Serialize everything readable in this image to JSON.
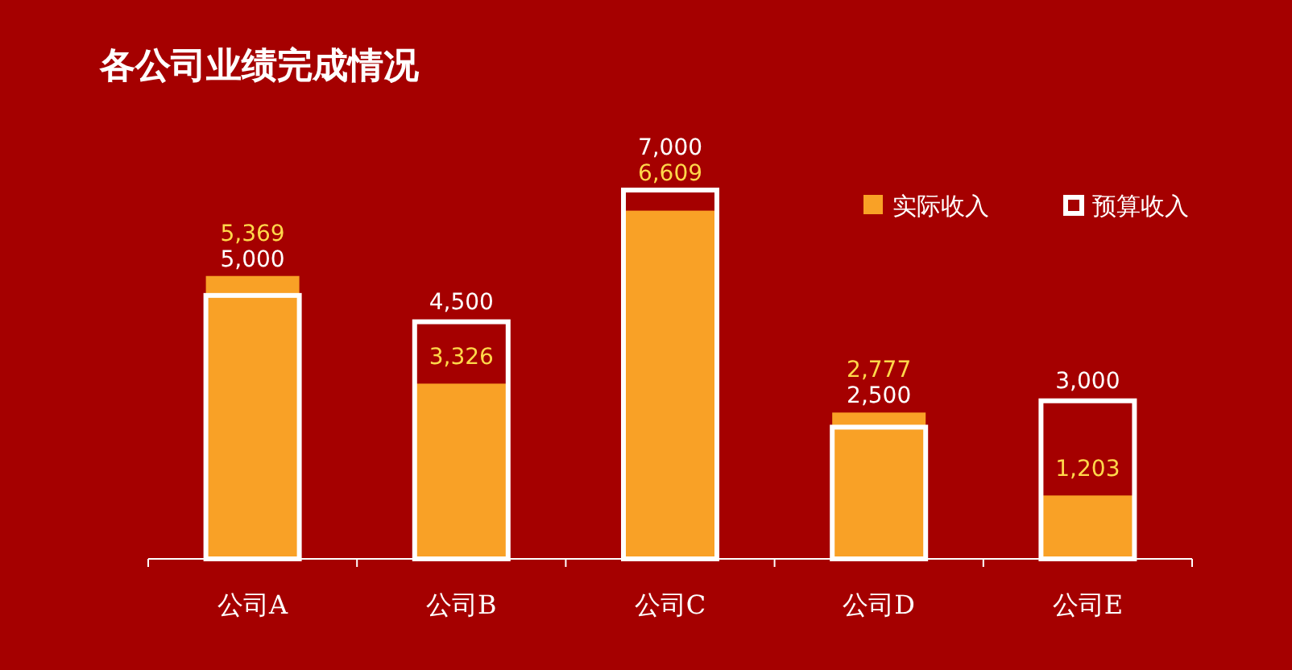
{
  "chart_data": {
    "type": "bar",
    "title": "各公司业绩完成情况",
    "categories": [
      "公司A",
      "公司B",
      "公司C",
      "公司D",
      "公司E"
    ],
    "series": [
      {
        "name": "实际收入",
        "color": "#f9a126",
        "values": [
          5369,
          3326,
          6609,
          2777,
          1203
        ],
        "value_labels": [
          "5,369",
          "3,326",
          "6,609",
          "2,777",
          "1,203"
        ]
      },
      {
        "name": "预算收入",
        "color": "#ffffff",
        "values": [
          5000,
          4500,
          7000,
          2500,
          3000
        ],
        "value_labels": [
          "5,000",
          "4,500",
          "7,000",
          "2,500",
          "3,000"
        ]
      }
    ],
    "legend": "top right"
  }
}
